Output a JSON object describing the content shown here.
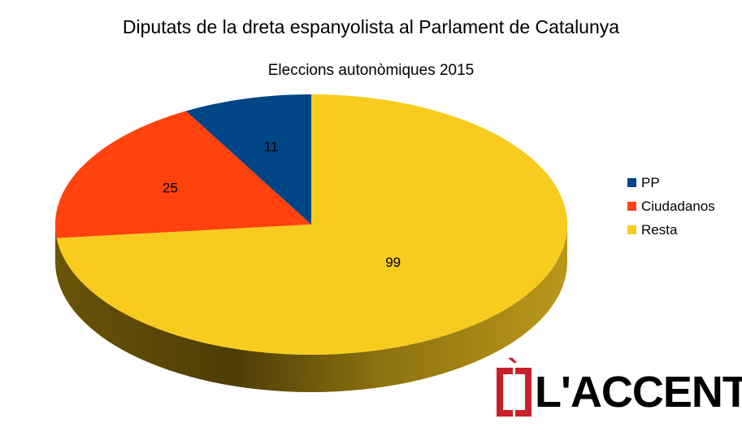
{
  "chart_data": {
    "type": "pie",
    "title": "Diputats de la dreta espanyolista al Parlament de Catalunya",
    "subtitle": "Eleccions autonòmiques 2015",
    "categories": [
      "PP",
      "Ciudadanos",
      "Resta"
    ],
    "values": [
      11,
      25,
      99
    ],
    "data_labels": [
      "11",
      "25",
      "99"
    ],
    "colors": [
      "#004586",
      "#ff420e",
      "#ffd320"
    ],
    "legend_position": "right",
    "style": "3d"
  },
  "logo": {
    "grave": "`",
    "text": "L'ACCENT"
  }
}
